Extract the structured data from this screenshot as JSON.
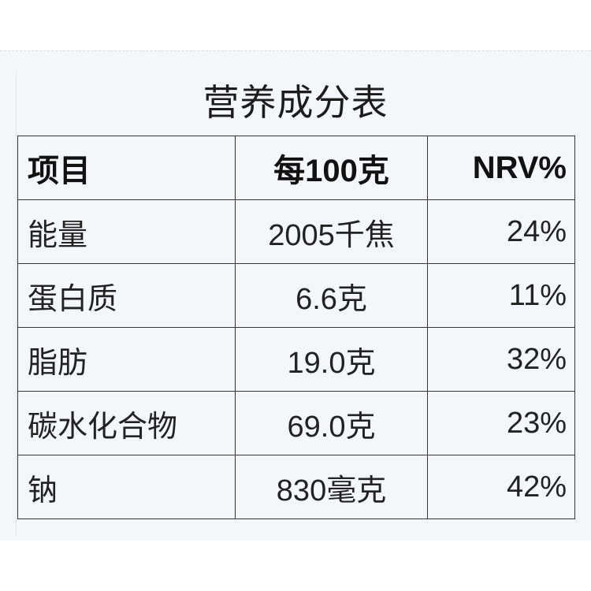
{
  "title": "营养成分表",
  "headers": [
    "项目",
    "每100克",
    "NRV%"
  ],
  "rows": [
    [
      "能量",
      "2005千焦",
      "24%"
    ],
    [
      "蛋白质",
      "6.6克",
      "11%"
    ],
    [
      "脂肪",
      "19.0克",
      "32%"
    ],
    [
      "碳水化合物",
      "69.0克",
      "23%"
    ],
    [
      "钠",
      "830毫克",
      "42%"
    ]
  ]
}
